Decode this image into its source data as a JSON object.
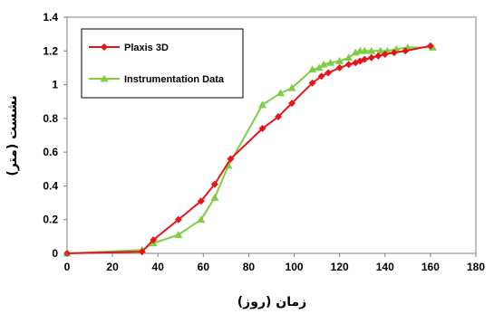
{
  "chart_data": {
    "type": "line",
    "xlabel": "زمان (روز)",
    "ylabel": "نشست (متر)",
    "xlim": [
      0,
      180
    ],
    "ylim": [
      0,
      1.4
    ],
    "x_ticks": [
      "0",
      "20",
      "40",
      "60",
      "80",
      "100",
      "120",
      "140",
      "160",
      "180"
    ],
    "y_ticks": [
      "0",
      "0.2",
      "0.4",
      "0.6",
      "0.8",
      "1",
      "1.2",
      "1.4"
    ],
    "grid": false,
    "legend_position": "top-left",
    "series": [
      {
        "name": "Plaxis 3D",
        "color": "#e8141c",
        "marker": "diamond",
        "points": [
          [
            0,
            0.0
          ],
          [
            33,
            0.01
          ],
          [
            38,
            0.08
          ],
          [
            49,
            0.2
          ],
          [
            59,
            0.31
          ],
          [
            65,
            0.41
          ],
          [
            72,
            0.56
          ],
          [
            86,
            0.74
          ],
          [
            93,
            0.81
          ],
          [
            99,
            0.89
          ],
          [
            108,
            1.01
          ],
          [
            112,
            1.05
          ],
          [
            115,
            1.07
          ],
          [
            120,
            1.1
          ],
          [
            124,
            1.12
          ],
          [
            127,
            1.13
          ],
          [
            129,
            1.14
          ],
          [
            131,
            1.15
          ],
          [
            134,
            1.16
          ],
          [
            137,
            1.17
          ],
          [
            140,
            1.18
          ],
          [
            144,
            1.19
          ],
          [
            149,
            1.2
          ],
          [
            160,
            1.23
          ]
        ]
      },
      {
        "name": "Instrumentation Data",
        "color": "#7dce42",
        "marker": "triangle",
        "points": [
          [
            0,
            0.0
          ],
          [
            33,
            0.02
          ],
          [
            38,
            0.06
          ],
          [
            49,
            0.11
          ],
          [
            59,
            0.2
          ],
          [
            65,
            0.33
          ],
          [
            71,
            0.52
          ],
          [
            86,
            0.88
          ],
          [
            94,
            0.95
          ],
          [
            99,
            0.98
          ],
          [
            108,
            1.09
          ],
          [
            111,
            1.1
          ],
          [
            113,
            1.12
          ],
          [
            116,
            1.13
          ],
          [
            120,
            1.14
          ],
          [
            124,
            1.16
          ],
          [
            127,
            1.19
          ],
          [
            129,
            1.2
          ],
          [
            131,
            1.2
          ],
          [
            134,
            1.2
          ],
          [
            138,
            1.2
          ],
          [
            141,
            1.2
          ],
          [
            145,
            1.21
          ],
          [
            150,
            1.22
          ],
          [
            161,
            1.22
          ]
        ]
      }
    ]
  }
}
